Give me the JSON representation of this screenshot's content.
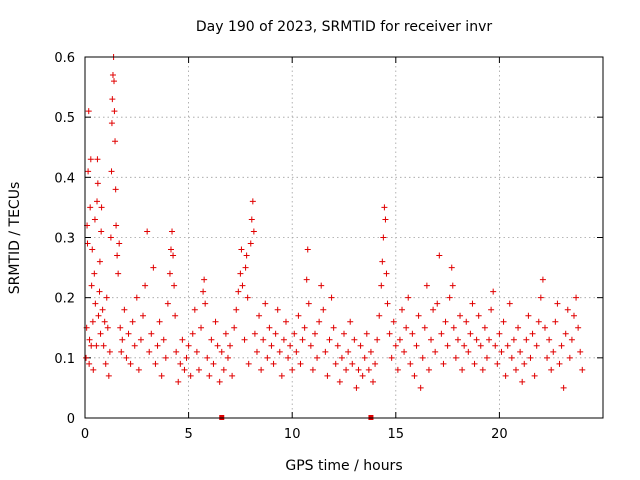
{
  "chart_data": {
    "type": "scatter",
    "title": "Day 190 of 2023, SRMTID for receiver invr",
    "xlabel": "GPS time / hours",
    "ylabel": "SRMTID / TECUs",
    "xlim": [
      0,
      25
    ],
    "ylim": [
      0,
      0.6
    ],
    "xticks": [
      "0",
      "5",
      "10",
      "15",
      "20"
    ],
    "yticks": [
      "0",
      "0.1",
      "0.2",
      "0.3",
      "0.4",
      "0.5",
      "0.6"
    ],
    "grid": true,
    "marker": "plus",
    "series_color": "#e00000",
    "series": [
      {
        "name": "SRMTID",
        "points": [
          [
            0.05,
            0.1
          ],
          [
            0.08,
            0.15
          ],
          [
            0.1,
            0.32
          ],
          [
            0.12,
            0.29
          ],
          [
            0.15,
            0.41
          ],
          [
            0.18,
            0.51
          ],
          [
            0.2,
            0.09
          ],
          [
            0.22,
            0.13
          ],
          [
            0.25,
            0.35
          ],
          [
            0.28,
            0.43
          ],
          [
            0.3,
            0.12
          ],
          [
            0.32,
            0.22
          ],
          [
            0.35,
            0.28
          ],
          [
            0.38,
            0.16
          ],
          [
            0.4,
            0.08
          ],
          [
            0.45,
            0.24
          ],
          [
            0.48,
            0.33
          ],
          [
            0.5,
            0.19
          ],
          [
            0.55,
            0.12
          ],
          [
            0.58,
            0.36
          ],
          [
            0.6,
            0.43
          ],
          [
            0.62,
            0.39
          ],
          [
            0.65,
            0.17
          ],
          [
            0.7,
            0.21
          ],
          [
            0.72,
            0.26
          ],
          [
            0.75,
            0.14
          ],
          [
            0.78,
            0.31
          ],
          [
            0.8,
            0.35
          ],
          [
            0.85,
            0.18
          ],
          [
            0.9,
            0.12
          ],
          [
            0.95,
            0.16
          ],
          [
            1.0,
            0.09
          ],
          [
            1.05,
            0.2
          ],
          [
            1.1,
            0.15
          ],
          [
            1.15,
            0.07
          ],
          [
            1.2,
            0.11
          ],
          [
            1.25,
            0.3
          ],
          [
            1.28,
            0.41
          ],
          [
            1.3,
            0.49
          ],
          [
            1.32,
            0.53
          ],
          [
            1.35,
            0.57
          ],
          [
            1.38,
            0.6
          ],
          [
            1.4,
            0.56
          ],
          [
            1.42,
            0.51
          ],
          [
            1.45,
            0.46
          ],
          [
            1.48,
            0.38
          ],
          [
            1.5,
            0.32
          ],
          [
            1.55,
            0.27
          ],
          [
            1.6,
            0.24
          ],
          [
            1.65,
            0.29
          ],
          [
            1.7,
            0.15
          ],
          [
            1.75,
            0.11
          ],
          [
            1.8,
            0.13
          ],
          [
            1.9,
            0.18
          ],
          [
            2.0,
            0.1
          ],
          [
            2.1,
            0.14
          ],
          [
            2.2,
            0.09
          ],
          [
            2.3,
            0.16
          ],
          [
            2.4,
            0.12
          ],
          [
            2.5,
            0.2
          ],
          [
            2.6,
            0.08
          ],
          [
            2.7,
            0.13
          ],
          [
            2.8,
            0.17
          ],
          [
            2.9,
            0.22
          ],
          [
            3.0,
            0.31
          ],
          [
            3.1,
            0.11
          ],
          [
            3.2,
            0.14
          ],
          [
            3.3,
            0.25
          ],
          [
            3.4,
            0.09
          ],
          [
            3.5,
            0.12
          ],
          [
            3.6,
            0.16
          ],
          [
            3.7,
            0.07
          ],
          [
            3.8,
            0.13
          ],
          [
            3.9,
            0.1
          ],
          [
            4.0,
            0.19
          ],
          [
            4.1,
            0.24
          ],
          [
            4.15,
            0.28
          ],
          [
            4.2,
            0.31
          ],
          [
            4.25,
            0.27
          ],
          [
            4.3,
            0.22
          ],
          [
            4.35,
            0.17
          ],
          [
            4.4,
            0.11
          ],
          [
            4.5,
            0.06
          ],
          [
            4.6,
            0.09
          ],
          [
            4.7,
            0.13
          ],
          [
            4.8,
            0.08
          ],
          [
            4.9,
            0.1
          ],
          [
            5.0,
            0.12
          ],
          [
            5.1,
            0.07
          ],
          [
            5.2,
            0.14
          ],
          [
            5.3,
            0.18
          ],
          [
            5.4,
            0.11
          ],
          [
            5.5,
            0.08
          ],
          [
            5.6,
            0.15
          ],
          [
            5.7,
            0.21
          ],
          [
            5.75,
            0.23
          ],
          [
            5.8,
            0.19
          ],
          [
            5.9,
            0.1
          ],
          [
            6.0,
            0.07
          ],
          [
            6.1,
            0.13
          ],
          [
            6.2,
            0.09
          ],
          [
            6.3,
            0.16
          ],
          [
            6.4,
            0.12
          ],
          [
            6.5,
            0.06
          ],
          [
            6.6,
            0.11
          ],
          [
            6.7,
            0.08
          ],
          [
            6.8,
            0.14
          ],
          [
            6.9,
            0.1
          ],
          [
            7.0,
            0.12
          ],
          [
            7.1,
            0.07
          ],
          [
            7.2,
            0.15
          ],
          [
            7.3,
            0.18
          ],
          [
            7.4,
            0.21
          ],
          [
            7.5,
            0.24
          ],
          [
            7.55,
            0.28
          ],
          [
            7.6,
            0.22
          ],
          [
            7.7,
            0.13
          ],
          [
            7.75,
            0.25
          ],
          [
            7.8,
            0.27
          ],
          [
            7.85,
            0.2
          ],
          [
            7.9,
            0.09
          ],
          [
            8.0,
            0.29
          ],
          [
            8.05,
            0.33
          ],
          [
            8.1,
            0.36
          ],
          [
            8.15,
            0.31
          ],
          [
            8.2,
            0.14
          ],
          [
            8.3,
            0.11
          ],
          [
            8.4,
            0.17
          ],
          [
            8.5,
            0.08
          ],
          [
            8.6,
            0.13
          ],
          [
            8.7,
            0.19
          ],
          [
            8.8,
            0.1
          ],
          [
            8.9,
            0.15
          ],
          [
            9.0,
            0.12
          ],
          [
            9.1,
            0.09
          ],
          [
            9.2,
            0.14
          ],
          [
            9.3,
            0.18
          ],
          [
            9.4,
            0.11
          ],
          [
            9.5,
            0.07
          ],
          [
            9.6,
            0.13
          ],
          [
            9.7,
            0.16
          ],
          [
            9.8,
            0.1
          ],
          [
            9.9,
            0.12
          ],
          [
            10.0,
            0.08
          ],
          [
            10.1,
            0.14
          ],
          [
            10.2,
            0.11
          ],
          [
            10.3,
            0.17
          ],
          [
            10.4,
            0.09
          ],
          [
            10.5,
            0.13
          ],
          [
            10.6,
            0.15
          ],
          [
            10.7,
            0.23
          ],
          [
            10.75,
            0.28
          ],
          [
            10.8,
            0.19
          ],
          [
            10.9,
            0.12
          ],
          [
            11.0,
            0.08
          ],
          [
            11.1,
            0.14
          ],
          [
            11.2,
            0.1
          ],
          [
            11.3,
            0.16
          ],
          [
            11.4,
            0.22
          ],
          [
            11.5,
            0.18
          ],
          [
            11.6,
            0.11
          ],
          [
            11.7,
            0.07
          ],
          [
            11.8,
            0.13
          ],
          [
            11.9,
            0.2
          ],
          [
            12.0,
            0.15
          ],
          [
            12.1,
            0.09
          ],
          [
            12.2,
            0.12
          ],
          [
            12.3,
            0.06
          ],
          [
            12.4,
            0.1
          ],
          [
            12.5,
            0.14
          ],
          [
            12.6,
            0.08
          ],
          [
            12.7,
            0.11
          ],
          [
            12.8,
            0.16
          ],
          [
            12.9,
            0.09
          ],
          [
            13.0,
            0.13
          ],
          [
            13.1,
            0.05
          ],
          [
            13.2,
            0.08
          ],
          [
            13.3,
            0.12
          ],
          [
            13.4,
            0.07
          ],
          [
            13.5,
            0.1
          ],
          [
            13.6,
            0.14
          ],
          [
            13.7,
            0.08
          ],
          [
            13.8,
            0.11
          ],
          [
            13.9,
            0.06
          ],
          [
            14.0,
            0.09
          ],
          [
            14.1,
            0.13
          ],
          [
            14.2,
            0.17
          ],
          [
            14.3,
            0.22
          ],
          [
            14.35,
            0.26
          ],
          [
            14.4,
            0.3
          ],
          [
            14.45,
            0.35
          ],
          [
            14.5,
            0.33
          ],
          [
            14.55,
            0.24
          ],
          [
            14.6,
            0.19
          ],
          [
            14.7,
            0.14
          ],
          [
            14.8,
            0.1
          ],
          [
            14.9,
            0.16
          ],
          [
            15.0,
            0.12
          ],
          [
            15.1,
            0.08
          ],
          [
            15.2,
            0.13
          ],
          [
            15.3,
            0.18
          ],
          [
            15.4,
            0.11
          ],
          [
            15.5,
            0.15
          ],
          [
            15.6,
            0.2
          ],
          [
            15.7,
            0.09
          ],
          [
            15.8,
            0.14
          ],
          [
            15.9,
            0.07
          ],
          [
            16.0,
            0.12
          ],
          [
            16.1,
            0.17
          ],
          [
            16.2,
            0.05
          ],
          [
            16.3,
            0.1
          ],
          [
            16.4,
            0.15
          ],
          [
            16.5,
            0.22
          ],
          [
            16.6,
            0.08
          ],
          [
            16.7,
            0.13
          ],
          [
            16.8,
            0.18
          ],
          [
            16.9,
            0.11
          ],
          [
            17.0,
            0.19
          ],
          [
            17.1,
            0.27
          ],
          [
            17.2,
            0.14
          ],
          [
            17.3,
            0.09
          ],
          [
            17.4,
            0.16
          ],
          [
            17.5,
            0.12
          ],
          [
            17.6,
            0.2
          ],
          [
            17.7,
            0.25
          ],
          [
            17.75,
            0.22
          ],
          [
            17.8,
            0.15
          ],
          [
            17.9,
            0.1
          ],
          [
            18.0,
            0.13
          ],
          [
            18.1,
            0.17
          ],
          [
            18.2,
            0.08
          ],
          [
            18.3,
            0.12
          ],
          [
            18.4,
            0.16
          ],
          [
            18.5,
            0.11
          ],
          [
            18.6,
            0.14
          ],
          [
            18.7,
            0.19
          ],
          [
            18.8,
            0.09
          ],
          [
            18.9,
            0.13
          ],
          [
            19.0,
            0.17
          ],
          [
            19.1,
            0.12
          ],
          [
            19.2,
            0.08
          ],
          [
            19.3,
            0.15
          ],
          [
            19.4,
            0.1
          ],
          [
            19.5,
            0.13
          ],
          [
            19.6,
            0.18
          ],
          [
            19.7,
            0.21
          ],
          [
            19.8,
            0.12
          ],
          [
            19.9,
            0.09
          ],
          [
            20.0,
            0.14
          ],
          [
            20.1,
            0.11
          ],
          [
            20.2,
            0.16
          ],
          [
            20.3,
            0.07
          ],
          [
            20.4,
            0.12
          ],
          [
            20.5,
            0.19
          ],
          [
            20.6,
            0.1
          ],
          [
            20.7,
            0.13
          ],
          [
            20.8,
            0.08
          ],
          [
            20.9,
            0.15
          ],
          [
            21.0,
            0.11
          ],
          [
            21.1,
            0.06
          ],
          [
            21.2,
            0.09
          ],
          [
            21.3,
            0.13
          ],
          [
            21.4,
            0.17
          ],
          [
            21.5,
            0.1
          ],
          [
            21.6,
            0.14
          ],
          [
            21.7,
            0.07
          ],
          [
            21.8,
            0.12
          ],
          [
            21.9,
            0.16
          ],
          [
            22.0,
            0.2
          ],
          [
            22.1,
            0.23
          ],
          [
            22.2,
            0.15
          ],
          [
            22.3,
            0.1
          ],
          [
            22.4,
            0.13
          ],
          [
            22.5,
            0.08
          ],
          [
            22.6,
            0.11
          ],
          [
            22.7,
            0.16
          ],
          [
            22.8,
            0.19
          ],
          [
            22.9,
            0.09
          ],
          [
            23.0,
            0.12
          ],
          [
            23.1,
            0.05
          ],
          [
            23.2,
            0.14
          ],
          [
            23.3,
            0.18
          ],
          [
            23.4,
            0.1
          ],
          [
            23.5,
            0.13
          ],
          [
            23.6,
            0.17
          ],
          [
            23.7,
            0.2
          ],
          [
            23.8,
            0.15
          ],
          [
            23.9,
            0.11
          ],
          [
            24.0,
            0.08
          ]
        ]
      }
    ],
    "dropouts": [
      6.6,
      13.8
    ]
  }
}
